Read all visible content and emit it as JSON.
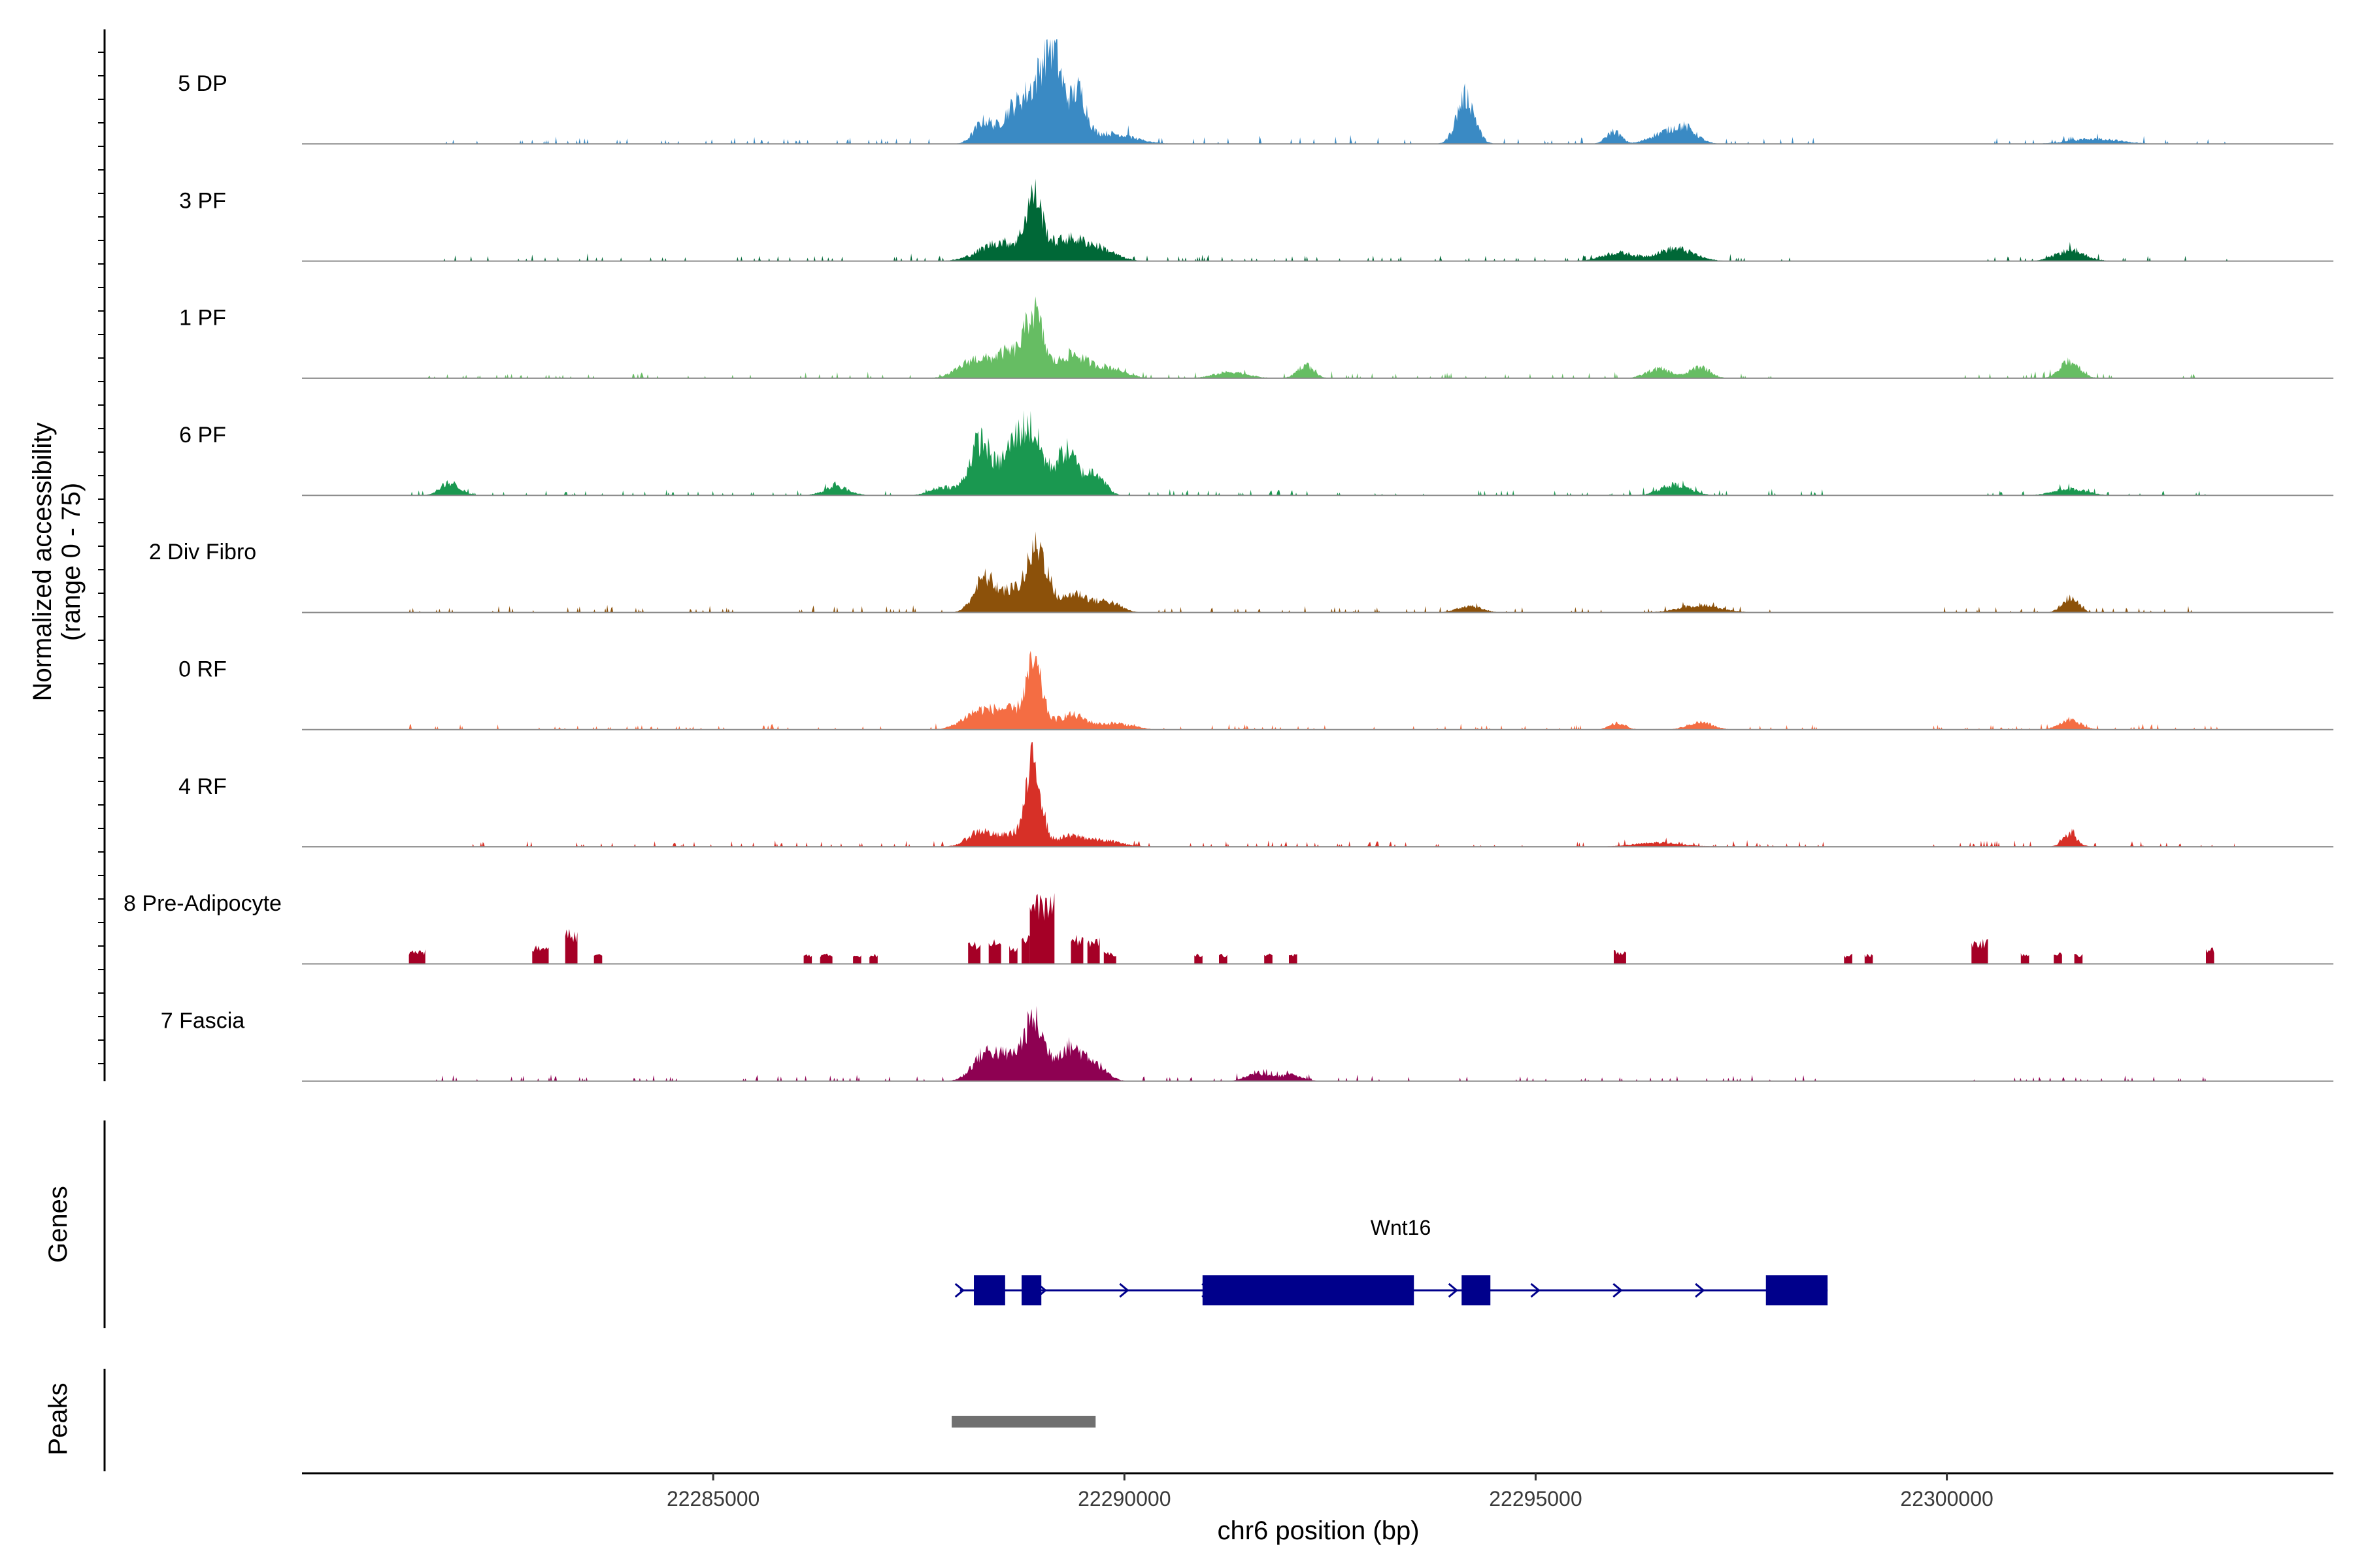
{
  "chart_data": {
    "type": "area",
    "title": "",
    "ylabel": "Normalized accessibility",
    "ylabel_range": "(range 0 - 75)",
    "ylim": [
      0,
      75
    ],
    "xlabel": "chr6 position (bp)",
    "xlim": [
      22280000,
      22304700
    ],
    "x_ticks": [
      22285000,
      22290000,
      22295000,
      22300000
    ],
    "x_tick_labels": [
      "22285000",
      "22290000",
      "22295000",
      "22300000"
    ],
    "tracks": [
      {
        "name": "5 DP",
        "color": "#3a8ac4",
        "peaks": [
          [
            22288300,
            0.22,
            120
          ],
          [
            22288800,
            0.35,
            110
          ],
          [
            22289100,
            0.95,
            140
          ],
          [
            22289450,
            0.42,
            90
          ],
          [
            22288600,
            0.25,
            100
          ],
          [
            22289800,
            0.1,
            300
          ],
          [
            22294150,
            0.45,
            110
          ],
          [
            22295950,
            0.12,
            90
          ],
          [
            22296800,
            0.16,
            150
          ],
          [
            22296500,
            0.08,
            150
          ],
          [
            22301800,
            0.05,
            300
          ]
        ],
        "spots": [
          [
            22281500,
            22283500,
            0.04
          ],
          [
            22283800,
            22287800,
            0.04
          ],
          [
            22290000,
            22293600,
            0.05
          ],
          [
            22294500,
            22295700,
            0.04
          ],
          [
            22297300,
            22298500,
            0.04
          ],
          [
            22300500,
            22303500,
            0.04
          ]
        ]
      },
      {
        "name": "3 PF",
        "color": "#006837",
        "peaks": [
          [
            22288900,
            0.55,
            100
          ],
          [
            22288500,
            0.18,
            250
          ],
          [
            22289300,
            0.2,
            220
          ],
          [
            22289700,
            0.1,
            200
          ],
          [
            22296700,
            0.12,
            220
          ],
          [
            22296000,
            0.08,
            200
          ],
          [
            22301500,
            0.1,
            180
          ]
        ],
        "spots": [
          [
            22281500,
            22287800,
            0.04
          ],
          [
            22290000,
            22295700,
            0.035
          ],
          [
            22297300,
            22298500,
            0.04
          ],
          [
            22300500,
            22303500,
            0.035
          ]
        ]
      },
      {
        "name": "1 PF",
        "color": "#66bd63",
        "peaks": [
          [
            22288900,
            0.6,
            110
          ],
          [
            22288200,
            0.18,
            200
          ],
          [
            22288600,
            0.22,
            150
          ],
          [
            22289350,
            0.22,
            180
          ],
          [
            22289800,
            0.1,
            200
          ],
          [
            22292200,
            0.12,
            100
          ],
          [
            22297000,
            0.11,
            120
          ],
          [
            22296500,
            0.09,
            150
          ],
          [
            22301500,
            0.16,
            120
          ],
          [
            22291300,
            0.06,
            200
          ]
        ],
        "spots": [
          [
            22281500,
            22287800,
            0.035
          ],
          [
            22290000,
            22296000,
            0.035
          ],
          [
            22297300,
            22298000,
            0.03
          ],
          [
            22300000,
            22303300,
            0.035
          ]
        ]
      },
      {
        "name": "6 PF",
        "color": "#1a9850",
        "peaks": [
          [
            22288250,
            0.52,
            130
          ],
          [
            22288850,
            0.62,
            150
          ],
          [
            22288600,
            0.3,
            120
          ],
          [
            22289300,
            0.42,
            130
          ],
          [
            22289650,
            0.22,
            110
          ],
          [
            22281800,
            0.12,
            120
          ],
          [
            22286500,
            0.08,
            150
          ],
          [
            22287800,
            0.08,
            150
          ],
          [
            22296700,
            0.1,
            180
          ],
          [
            22301500,
            0.06,
            200
          ]
        ],
        "spots": [
          [
            22281300,
            22287600,
            0.035
          ],
          [
            22290000,
            22295700,
            0.035
          ],
          [
            22295900,
            22298500,
            0.035
          ],
          [
            22300500,
            22303300,
            0.035
          ]
        ]
      },
      {
        "name": "2 Div Fibro",
        "color": "#8c510a",
        "peaks": [
          [
            22288300,
            0.32,
            130
          ],
          [
            22288950,
            0.6,
            120
          ],
          [
            22288650,
            0.2,
            150
          ],
          [
            22289400,
            0.18,
            160
          ],
          [
            22289800,
            0.1,
            150
          ],
          [
            22294200,
            0.06,
            150
          ],
          [
            22297000,
            0.07,
            250
          ],
          [
            22301500,
            0.14,
            100
          ]
        ],
        "spots": [
          [
            22281300,
            22287800,
            0.04
          ],
          [
            22290300,
            22296000,
            0.035
          ],
          [
            22296200,
            22298000,
            0.035
          ],
          [
            22299800,
            22303000,
            0.035
          ]
        ]
      },
      {
        "name": "0 RF",
        "color": "#f46d43",
        "peaks": [
          [
            22288900,
            0.6,
            100
          ],
          [
            22288250,
            0.18,
            200
          ],
          [
            22288600,
            0.15,
            150
          ],
          [
            22289350,
            0.14,
            180
          ],
          [
            22289900,
            0.06,
            200
          ],
          [
            22296000,
            0.06,
            100
          ],
          [
            22297000,
            0.07,
            150
          ],
          [
            22301500,
            0.09,
            130
          ]
        ],
        "spots": [
          [
            22281300,
            22287800,
            0.035
          ],
          [
            22290000,
            22295700,
            0.03
          ],
          [
            22297300,
            22298500,
            0.03
          ],
          [
            22299800,
            22303300,
            0.03
          ]
        ]
      },
      {
        "name": "4 RF",
        "color": "#d73027",
        "peaks": [
          [
            22288900,
            0.78,
            90
          ],
          [
            22288250,
            0.15,
            150
          ],
          [
            22288650,
            0.12,
            150
          ],
          [
            22289350,
            0.1,
            200
          ],
          [
            22289800,
            0.05,
            200
          ],
          [
            22301500,
            0.12,
            90
          ],
          [
            22296500,
            0.04,
            300
          ]
        ],
        "spots": [
          [
            22281300,
            22287800,
            0.04
          ],
          [
            22290000,
            22295700,
            0.035
          ],
          [
            22296000,
            22298500,
            0.035
          ],
          [
            22299800,
            22303500,
            0.035
          ]
        ]
      },
      {
        "name": "8 Pre-Adipocyte",
        "color": "#a50026",
        "blocks": [
          [
            22281300,
            22281500,
            0.14
          ],
          [
            22282800,
            22283000,
            0.18
          ],
          [
            22283200,
            22283350,
            0.34
          ],
          [
            22283550,
            22283650,
            0.1
          ],
          [
            22286100,
            22286200,
            0.1
          ],
          [
            22286300,
            22286450,
            0.1
          ],
          [
            22286700,
            22286800,
            0.1
          ],
          [
            22286900,
            22287000,
            0.1
          ],
          [
            22288100,
            22288250,
            0.22
          ],
          [
            22288350,
            22288500,
            0.28
          ],
          [
            22288600,
            22288700,
            0.18
          ],
          [
            22288750,
            22288850,
            0.3
          ],
          [
            22288850,
            22289150,
            0.68
          ],
          [
            22289350,
            22289500,
            0.28
          ],
          [
            22289550,
            22289700,
            0.26
          ],
          [
            22289750,
            22289900,
            0.12
          ],
          [
            22290850,
            22290950,
            0.1
          ],
          [
            22291150,
            22291250,
            0.1
          ],
          [
            22291700,
            22291800,
            0.1
          ],
          [
            22292000,
            22292100,
            0.1
          ],
          [
            22295950,
            22296100,
            0.14
          ],
          [
            22298750,
            22298850,
            0.1
          ],
          [
            22299000,
            22299100,
            0.1
          ],
          [
            22300300,
            22300500,
            0.24
          ],
          [
            22300900,
            22301000,
            0.12
          ],
          [
            22301300,
            22301400,
            0.12
          ],
          [
            22301550,
            22301650,
            0.1
          ],
          [
            22303150,
            22303250,
            0.16
          ]
        ]
      },
      {
        "name": "7 Fascia",
        "color": "#8e0152",
        "peaks": [
          [
            22288300,
            0.25,
            150
          ],
          [
            22288900,
            0.55,
            120
          ],
          [
            22288600,
            0.2,
            150
          ],
          [
            22289300,
            0.3,
            150
          ],
          [
            22289600,
            0.18,
            150
          ],
          [
            22291600,
            0.08,
            120
          ],
          [
            22292000,
            0.06,
            150
          ]
        ],
        "spots": [
          [
            22281300,
            22287800,
            0.035
          ],
          [
            22290000,
            22293700,
            0.035
          ],
          [
            22294000,
            22296700,
            0.03
          ],
          [
            22296700,
            22298500,
            0.035
          ],
          [
            22300300,
            22303300,
            0.03
          ]
        ]
      }
    ],
    "gene": {
      "name": "Wnt16",
      "color": "#00008b",
      "start": 22288000,
      "end": 22298550,
      "strand": "+",
      "exons": [
        [
          22288170,
          22288550
        ],
        [
          22288750,
          22288990
        ],
        [
          22290950,
          22293520
        ],
        [
          22294100,
          22294450
        ],
        [
          22297800,
          22298550
        ]
      ]
    },
    "peak_regions": [
      [
        22287900,
        22289650
      ]
    ],
    "peak_color": "#707070",
    "panel_labels": [
      "Genes",
      "Peaks"
    ]
  }
}
